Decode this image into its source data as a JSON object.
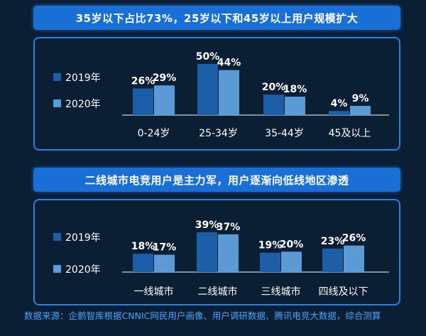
{
  "colors": {
    "series_2019": "#1c5ea8",
    "series_2020": "#5b9bd5",
    "accent": "#1a6fd6"
  },
  "chart_data": [
    {
      "type": "bar",
      "title": "35岁以下占比73%，25岁以下和45岁以上用户规模扩大",
      "categories": [
        "0-24岁",
        "25-34岁",
        "35-44岁",
        "45及以上"
      ],
      "series": [
        {
          "name": "2019年",
          "values": [
            26,
            50,
            20,
            4
          ],
          "labels": [
            "26%",
            "50%",
            "20%",
            "4%"
          ]
        },
        {
          "name": "2020年",
          "values": [
            29,
            44,
            18,
            9
          ],
          "labels": [
            "29%",
            "44%",
            "18%",
            "9%"
          ]
        }
      ],
      "ylim": [
        0,
        50
      ],
      "legend": "left",
      "grid": false
    },
    {
      "type": "bar",
      "title": "二线城市电竞用户是主力军，用户逐渐向低线地区渗透",
      "categories": [
        "一线城市",
        "二线城市",
        "三线城市",
        "四线及以下"
      ],
      "series": [
        {
          "name": "2019年",
          "values": [
            18,
            39,
            19,
            23
          ],
          "labels": [
            "18%",
            "39%",
            "19%",
            "23%"
          ]
        },
        {
          "name": "2020年",
          "values": [
            17,
            37,
            20,
            26
          ],
          "labels": [
            "17%",
            "37%",
            "20%",
            "26%"
          ]
        }
      ],
      "ylim": [
        0,
        39
      ],
      "legend": "left",
      "grid": false
    }
  ],
  "source": "数据来源：企鹅智库根据CNNIC网民用户画像、用户调研数据、腾讯电竞大数据，综合测算"
}
